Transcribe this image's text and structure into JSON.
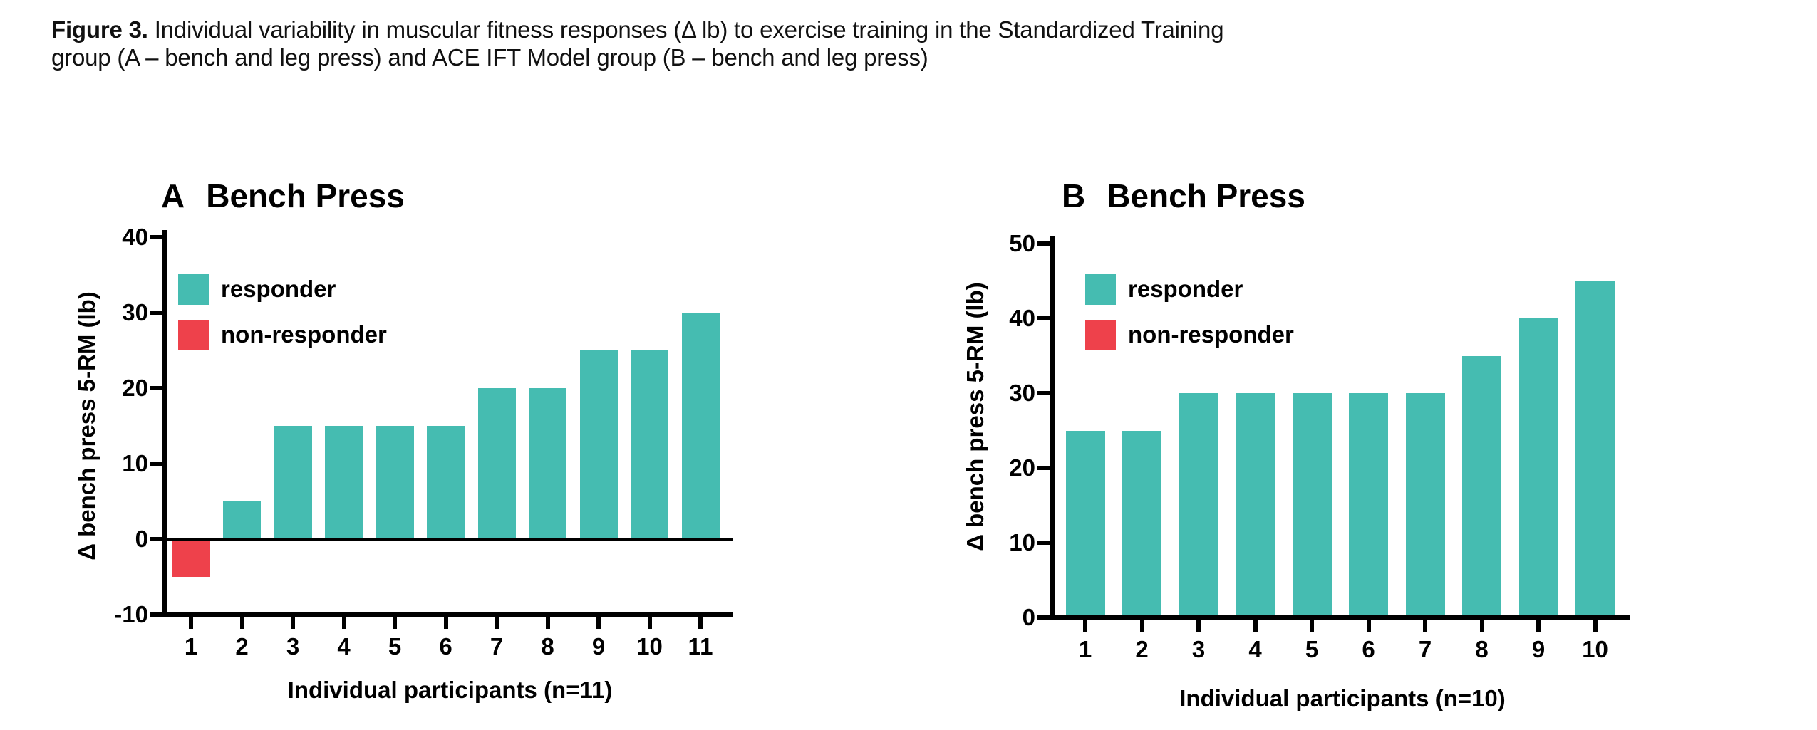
{
  "caption": {
    "label": "Figure 3.",
    "line1": "Individual variability in muscular fitness responses (Δ lb) to exercise training in the Standardized Training",
    "line2": "group (A – bench and leg press) and ACE IFT Model group (B – bench and leg press)"
  },
  "colors": {
    "responder": "#45bcb1",
    "non_responder": "#ee414b",
    "axis": "#000000",
    "background": "#ffffff"
  },
  "legend": {
    "responder_label": "responder",
    "non_responder_label": "non-responder"
  },
  "chart_data": [
    {
      "type": "bar",
      "panel": "A",
      "title": "Bench Press",
      "ylabel": "Δ bench press 5-RM (lb)",
      "xlabel": "Individual participants (n=11)",
      "categories": [
        "1",
        "2",
        "3",
        "4",
        "5",
        "6",
        "7",
        "8",
        "9",
        "10",
        "11"
      ],
      "values": [
        -5,
        5,
        15,
        15,
        15,
        15,
        20,
        20,
        25,
        25,
        30
      ],
      "responder_flags": [
        false,
        true,
        true,
        true,
        true,
        true,
        true,
        true,
        true,
        true,
        true
      ],
      "ylim": [
        -10,
        40
      ],
      "yticks": [
        -10,
        0,
        10,
        20,
        30,
        40
      ],
      "legend_position": "top-left",
      "grid": false
    },
    {
      "type": "bar",
      "panel": "B",
      "title": "Bench Press",
      "ylabel": "Δ bench press 5-RM (lb)",
      "xlabel": "Individual participants (n=10)",
      "categories": [
        "1",
        "2",
        "3",
        "4",
        "5",
        "6",
        "7",
        "8",
        "9",
        "10"
      ],
      "values": [
        25,
        25,
        30,
        30,
        30,
        30,
        30,
        35,
        40,
        45
      ],
      "responder_flags": [
        true,
        true,
        true,
        true,
        true,
        true,
        true,
        true,
        true,
        true
      ],
      "ylim": [
        0,
        50
      ],
      "yticks": [
        0,
        10,
        20,
        30,
        40,
        50
      ],
      "legend_position": "top-left",
      "grid": false
    }
  ]
}
